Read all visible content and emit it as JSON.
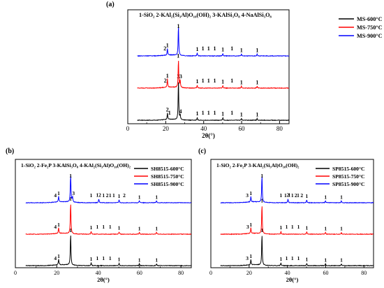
{
  "chart_data": [
    {
      "panel": "(a)",
      "type": "line",
      "header": "1-SiO₂  2-KAl₂(Si₃Al)O₁₀(OH)₂  3-KAlSi₃O₈  4-NaAlSi₃O₈",
      "xlabel": "2θ(°)",
      "xlim": [
        0,
        85
      ],
      "xticks": [
        0,
        20,
        40,
        60,
        80
      ],
      "legend_position": "top-right",
      "series": [
        {
          "name": "MS-600°C",
          "color": "#000000",
          "offset": 0.0,
          "peaks": [
            [
              20.9,
              0.07
            ],
            [
              26.7,
              0.42
            ],
            [
              27.6,
              0.05
            ],
            [
              36.6,
              0.03
            ],
            [
              50.1,
              0.025
            ],
            [
              59.9,
              0.02
            ],
            [
              68.2,
              0.02
            ]
          ],
          "labels": [
            [
              20.9,
              "2"
            ],
            [
              22.0,
              "1"
            ],
            [
              26.7,
              "3"
            ],
            [
              27.8,
              "4"
            ],
            [
              36.6,
              "1"
            ],
            [
              39.6,
              "1"
            ],
            [
              42.6,
              "1"
            ],
            [
              45.8,
              "1"
            ],
            [
              50.1,
              "1"
            ],
            [
              54.9,
              "1"
            ],
            [
              59.9,
              "1"
            ],
            [
              68.2,
              "1"
            ]
          ]
        },
        {
          "name": "MS-750°C",
          "color": "#ff0000",
          "offset": 0.34,
          "peaks": [
            [
              20.9,
              0.09
            ],
            [
              26.7,
              0.3
            ],
            [
              27.6,
              0.08
            ],
            [
              36.6,
              0.03
            ],
            [
              50.1,
              0.025
            ],
            [
              59.9,
              0.02
            ],
            [
              68.2,
              0.02
            ]
          ],
          "labels": [
            [
              19.8,
              "2"
            ],
            [
              20.9,
              "1"
            ],
            [
              26.6,
              "1"
            ],
            [
              27.9,
              "3"
            ],
            [
              36.6,
              "1"
            ],
            [
              39.6,
              "1"
            ],
            [
              42.6,
              "1"
            ],
            [
              45.8,
              "1"
            ],
            [
              50.1,
              "1"
            ],
            [
              54.9,
              "1"
            ],
            [
              59.9,
              "1"
            ],
            [
              68.2,
              "1"
            ]
          ]
        },
        {
          "name": "MS-900°C",
          "color": "#0000ff",
          "offset": 0.68,
          "peaks": [
            [
              20.9,
              0.07
            ],
            [
              26.7,
              0.32
            ],
            [
              36.6,
              0.03
            ],
            [
              50.1,
              0.025
            ],
            [
              59.9,
              0.02
            ],
            [
              68.2,
              0.02
            ]
          ],
          "labels": [
            [
              19.6,
              "2"
            ],
            [
              20.9,
              "1"
            ],
            [
              26.7,
              "1"
            ],
            [
              36.6,
              "1"
            ],
            [
              39.6,
              "1"
            ],
            [
              42.6,
              "1"
            ],
            [
              45.8,
              "1"
            ],
            [
              50.1,
              "1"
            ],
            [
              54.9,
              "1"
            ],
            [
              59.9,
              "1"
            ],
            [
              68.2,
              "1"
            ]
          ]
        }
      ]
    },
    {
      "panel": "(b)",
      "type": "line",
      "header": "1-SiO₂  2-Fe₂P  3-KAlSi₃O₈  4-KAl₂(Si₃Al)O₁₀(OH)₂",
      "xlabel": "2θ(°)",
      "xlim": [
        0,
        85
      ],
      "xticks": [
        0,
        20,
        40,
        60,
        80
      ],
      "legend_position": "top-right",
      "series": [
        {
          "name": "SH8515-600°C",
          "color": "#000000",
          "offset": 0.0,
          "peaks": [
            [
              20.9,
              0.06
            ],
            [
              26.7,
              0.34
            ],
            [
              36.6,
              0.03
            ],
            [
              50.1,
              0.025
            ],
            [
              59.9,
              0.02
            ],
            [
              68.2,
              0.02
            ]
          ],
          "labels": [
            [
              19.3,
              "4"
            ],
            [
              20.9,
              "1"
            ],
            [
              26.7,
              "1"
            ],
            [
              36.6,
              "1"
            ],
            [
              39.6,
              "1"
            ],
            [
              42.6,
              "1"
            ],
            [
              45.8,
              "1"
            ],
            [
              50.1,
              "1"
            ],
            [
              59.9,
              "1"
            ],
            [
              68.2,
              "1"
            ]
          ]
        },
        {
          "name": "SH8515-750°C",
          "color": "#ff0000",
          "offset": 0.34,
          "peaks": [
            [
              20.9,
              0.06
            ],
            [
              26.7,
              0.34
            ],
            [
              36.6,
              0.03
            ],
            [
              50.1,
              0.025
            ],
            [
              59.9,
              0.02
            ],
            [
              68.2,
              0.02
            ]
          ],
          "labels": [
            [
              19.3,
              "4"
            ],
            [
              20.9,
              "1"
            ],
            [
              26.7,
              "1"
            ],
            [
              36.6,
              "1"
            ],
            [
              39.6,
              "1"
            ],
            [
              42.6,
              "1"
            ],
            [
              45.8,
              "1"
            ],
            [
              50.1,
              "1"
            ],
            [
              59.9,
              "1"
            ],
            [
              68.2,
              "1"
            ]
          ]
        },
        {
          "name": "SH8515-900°C",
          "color": "#0000ff",
          "offset": 0.68,
          "peaks": [
            [
              20.9,
              0.06
            ],
            [
              26.7,
              0.3
            ],
            [
              27.6,
              0.06
            ],
            [
              40.3,
              0.04
            ],
            [
              50.1,
              0.03
            ],
            [
              59.9,
              0.02
            ],
            [
              68.2,
              0.02
            ]
          ],
          "labels": [
            [
              19.3,
              "4"
            ],
            [
              20.9,
              "1"
            ],
            [
              26.7,
              "1"
            ],
            [
              28.1,
              "3"
            ],
            [
              36.6,
              "1"
            ],
            [
              39.6,
              "1"
            ],
            [
              40.8,
              "2"
            ],
            [
              42.6,
              "1"
            ],
            [
              44.4,
              "2"
            ],
            [
              45.8,
              "1"
            ],
            [
              47.5,
              "1"
            ],
            [
              50.1,
              "1"
            ],
            [
              52.6,
              "2"
            ],
            [
              59.9,
              "1"
            ],
            [
              68.2,
              "1"
            ]
          ]
        }
      ]
    },
    {
      "panel": "(c)",
      "type": "line",
      "header": "1-SiO₂  2-Fe₂P  3-KAl₂(Si₃Al)O₁₀(OH)₂",
      "xlabel": "2θ(°)",
      "xlim": [
        0,
        85
      ],
      "xticks": [
        0,
        20,
        40,
        60,
        80
      ],
      "legend_position": "top-right",
      "series": [
        {
          "name": "SP8515-600°C",
          "color": "#000000",
          "offset": 0.0,
          "peaks": [
            [
              20.9,
              0.06
            ],
            [
              26.7,
              0.34
            ],
            [
              36.6,
              0.03
            ],
            [
              50.1,
              0.025
            ],
            [
              59.9,
              0.02
            ],
            [
              68.2,
              0.02
            ]
          ],
          "labels": [
            [
              19.0,
              "3"
            ],
            [
              20.9,
              "1"
            ],
            [
              26.7,
              "1"
            ],
            [
              36.6,
              "1"
            ],
            [
              39.6,
              "1"
            ],
            [
              42.6,
              "1"
            ],
            [
              45.8,
              "1"
            ],
            [
              50.1,
              "1"
            ],
            [
              59.9,
              "1"
            ],
            [
              68.2,
              "1"
            ]
          ]
        },
        {
          "name": "SP8515-750°C",
          "color": "#ff0000",
          "offset": 0.34,
          "peaks": [
            [
              20.9,
              0.06
            ],
            [
              26.7,
              0.32
            ],
            [
              36.6,
              0.03
            ],
            [
              50.1,
              0.025
            ],
            [
              59.9,
              0.02
            ],
            [
              68.2,
              0.02
            ]
          ],
          "labels": [
            [
              19.3,
              "3"
            ],
            [
              20.9,
              "1"
            ],
            [
              26.7,
              "1"
            ],
            [
              36.6,
              "1"
            ],
            [
              39.6,
              "1"
            ],
            [
              42.6,
              "1"
            ],
            [
              45.8,
              "1"
            ],
            [
              50.1,
              "1"
            ],
            [
              59.9,
              "1"
            ],
            [
              68.2,
              "1"
            ]
          ]
        },
        {
          "name": "SP8515-900°C",
          "color": "#0000ff",
          "offset": 0.68,
          "peaks": [
            [
              20.9,
              0.06
            ],
            [
              26.7,
              0.3
            ],
            [
              40.3,
              0.04
            ],
            [
              50.1,
              0.03
            ],
            [
              59.9,
              0.02
            ],
            [
              68.2,
              0.02
            ]
          ],
          "labels": [
            [
              19.0,
              "3"
            ],
            [
              20.9,
              "1"
            ],
            [
              26.7,
              "1"
            ],
            [
              36.6,
              "1"
            ],
            [
              39.0,
              "1"
            ],
            [
              40.3,
              "2"
            ],
            [
              41.0,
              "1"
            ],
            [
              42.6,
              "1"
            ],
            [
              44.4,
              "2"
            ],
            [
              45.6,
              "1"
            ],
            [
              47.5,
              "2"
            ],
            [
              50.1,
              "1"
            ],
            [
              59.9,
              "1"
            ],
            [
              68.2,
              "1"
            ]
          ]
        }
      ]
    }
  ]
}
